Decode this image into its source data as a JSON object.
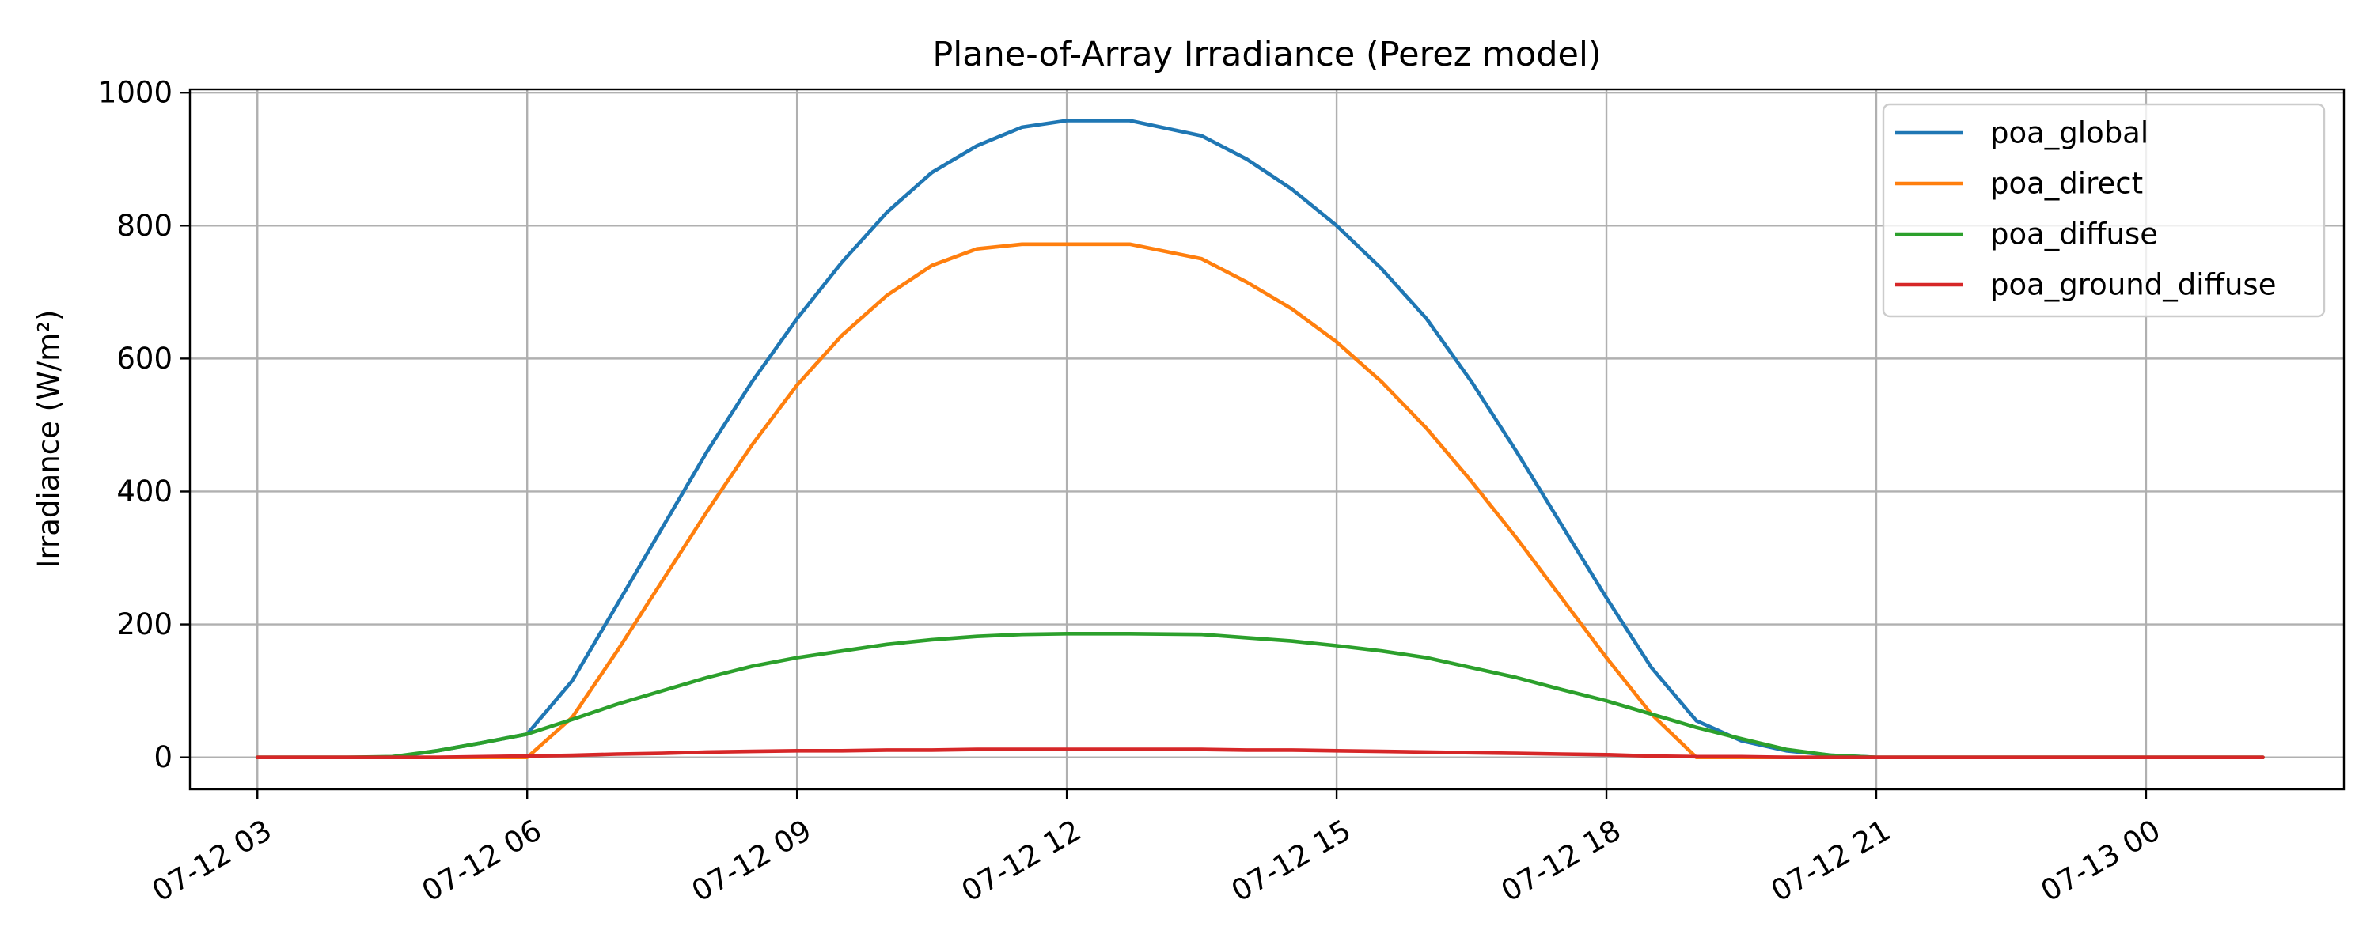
{
  "chart_data": {
    "type": "line",
    "title": "Plane-of-Array Irradiance (Perez model)",
    "xlabel": "",
    "ylabel": "Irradiance (W/m²)",
    "x_unit": "hour of day, 2024-07-12 (values > 24 fall on 07-13)",
    "xlim": [
      2.25,
      26.2
    ],
    "ylim": [
      -48,
      1005
    ],
    "x_ticks": [
      {
        "value": 3,
        "label": "07-12 03"
      },
      {
        "value": 6,
        "label": "07-12 06"
      },
      {
        "value": 9,
        "label": "07-12 09"
      },
      {
        "value": 12,
        "label": "07-12 12"
      },
      {
        "value": 15,
        "label": "07-12 15"
      },
      {
        "value": 18,
        "label": "07-12 18"
      },
      {
        "value": 21,
        "label": "07-12 21"
      },
      {
        "value": 24,
        "label": "07-13 00"
      }
    ],
    "y_ticks": [
      0,
      200,
      400,
      600,
      800,
      1000
    ],
    "grid": true,
    "legend_position": "top-right",
    "x": [
      3.0,
      4.0,
      4.5,
      5.0,
      5.5,
      6.0,
      6.5,
      7.0,
      7.5,
      8.0,
      8.5,
      9.0,
      9.5,
      10.0,
      10.5,
      11.0,
      11.5,
      12.0,
      12.7,
      13.5,
      14.0,
      14.5,
      15.0,
      15.5,
      16.0,
      16.5,
      17.0,
      17.5,
      18.0,
      18.5,
      19.0,
      19.5,
      20.0,
      20.5,
      21.0,
      22.0,
      24.0,
      25.3
    ],
    "series": [
      {
        "name": "poa_global",
        "color": "#1f77b4",
        "values": [
          0,
          0,
          0,
          10,
          22,
          35,
          115,
          230,
          345,
          460,
          565,
          660,
          745,
          820,
          880,
          920,
          948,
          958,
          958,
          935,
          900,
          855,
          800,
          735,
          660,
          565,
          460,
          350,
          240,
          135,
          55,
          25,
          10,
          3,
          0,
          0,
          0,
          0
        ]
      },
      {
        "name": "poa_direct",
        "color": "#ff7f0e",
        "values": [
          0,
          0,
          0,
          0,
          0,
          0,
          60,
          160,
          265,
          370,
          470,
          560,
          635,
          695,
          740,
          765,
          772,
          772,
          772,
          750,
          715,
          675,
          625,
          565,
          495,
          415,
          330,
          240,
          150,
          65,
          0,
          0,
          0,
          0,
          0,
          0,
          0,
          0
        ]
      },
      {
        "name": "poa_diffuse",
        "color": "#2ca02c",
        "values": [
          0,
          0,
          1,
          10,
          22,
          35,
          57,
          80,
          100,
          120,
          137,
          150,
          160,
          170,
          177,
          182,
          185,
          186,
          186,
          185,
          180,
          175,
          168,
          160,
          150,
          135,
          120,
          102,
          85,
          65,
          45,
          28,
          12,
          3,
          0,
          0,
          0,
          0
        ]
      },
      {
        "name": "poa_ground_diffuse",
        "color": "#d62728",
        "values": [
          0,
          0,
          0,
          0,
          1,
          2,
          3,
          5,
          6,
          8,
          9,
          10,
          10,
          11,
          11,
          12,
          12,
          12,
          12,
          12,
          11,
          11,
          10,
          9,
          8,
          7,
          6,
          5,
          4,
          2,
          1,
          1,
          0,
          0,
          0,
          0,
          0,
          0
        ]
      }
    ]
  }
}
